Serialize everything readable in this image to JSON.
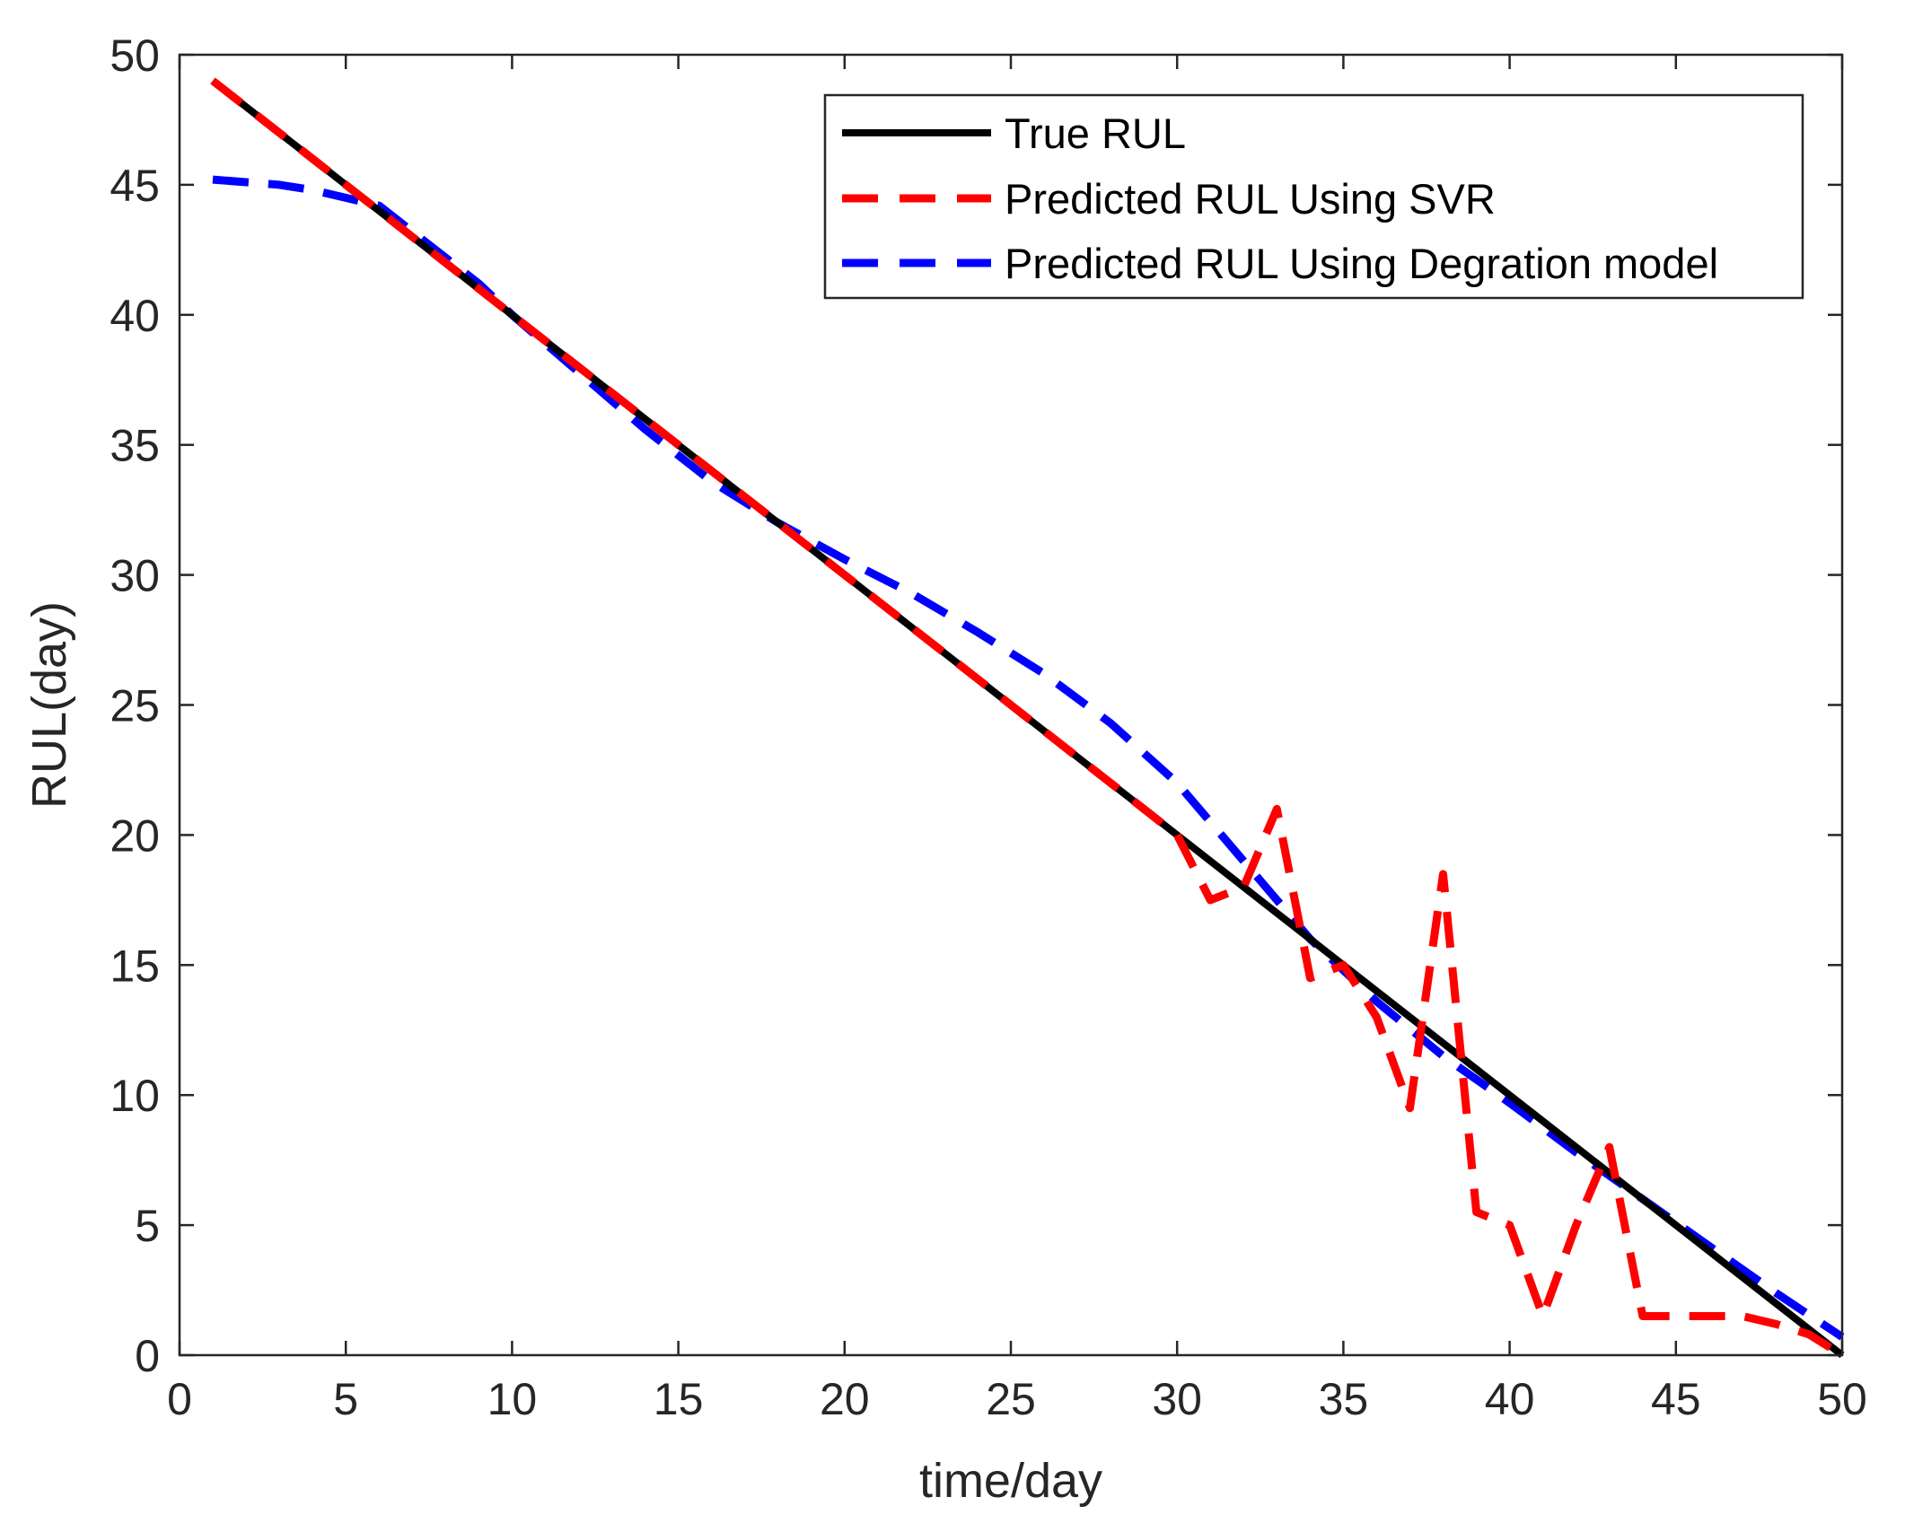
{
  "chart_data": {
    "type": "line",
    "xlabel": "time/day",
    "ylabel": "RUL(day)",
    "xlim": [
      0,
      50
    ],
    "ylim": [
      0,
      50
    ],
    "xticks": [
      0,
      5,
      10,
      15,
      20,
      25,
      30,
      35,
      40,
      45,
      50
    ],
    "yticks": [
      0,
      5,
      10,
      15,
      20,
      25,
      30,
      35,
      40,
      45,
      50
    ],
    "legend_position": "top-right",
    "grid": false,
    "series": [
      {
        "name": "True RUL",
        "color": "#000000",
        "style": "solid",
        "x": [
          1,
          50
        ],
        "y": [
          49,
          0
        ]
      },
      {
        "name": "Predicted RUL Using SVR",
        "color": "#ff0000",
        "style": "dashed",
        "x": [
          1,
          2,
          3,
          4,
          5,
          6,
          7,
          8,
          9,
          10,
          11,
          12,
          13,
          14,
          15,
          16,
          17,
          18,
          19,
          20,
          21,
          22,
          23,
          24,
          25,
          26,
          27,
          28,
          29,
          30,
          31,
          32,
          33,
          34,
          35,
          36,
          37,
          38,
          39,
          40,
          41,
          42,
          43,
          44,
          45,
          46,
          47,
          48,
          49,
          50
        ],
        "y": [
          49,
          48,
          47,
          46,
          45,
          44,
          43,
          42,
          41,
          40,
          39,
          38,
          37,
          36,
          35,
          34,
          33,
          32,
          31,
          30,
          29,
          28,
          27,
          26,
          25,
          24,
          23,
          22,
          21,
          20,
          17.5,
          18,
          21,
          14.5,
          15,
          13,
          9.5,
          18.5,
          5.5,
          5,
          1.5,
          5,
          8,
          1.5,
          1.5,
          1.5,
          1.5,
          1.2,
          0.8,
          0
        ]
      },
      {
        "name": "Predicted RUL Using Degration model",
        "color": "#0000ff",
        "style": "dashed",
        "x": [
          1,
          2,
          3,
          4,
          5,
          6,
          7,
          8,
          9,
          10,
          12,
          14,
          16,
          18,
          20,
          22,
          24,
          26,
          28,
          30,
          32,
          34,
          36,
          38,
          40,
          42,
          44,
          46,
          48,
          50
        ],
        "y": [
          45.2,
          45.1,
          45,
          44.8,
          44.5,
          44.2,
          43.2,
          42.2,
          41.2,
          40,
          37.8,
          35.6,
          33.6,
          32,
          30.6,
          29.3,
          27.8,
          26.2,
          24.3,
          22,
          19,
          16,
          13.6,
          11.5,
          9.7,
          7.8,
          6,
          4.2,
          2.4,
          0.7
        ]
      }
    ]
  }
}
